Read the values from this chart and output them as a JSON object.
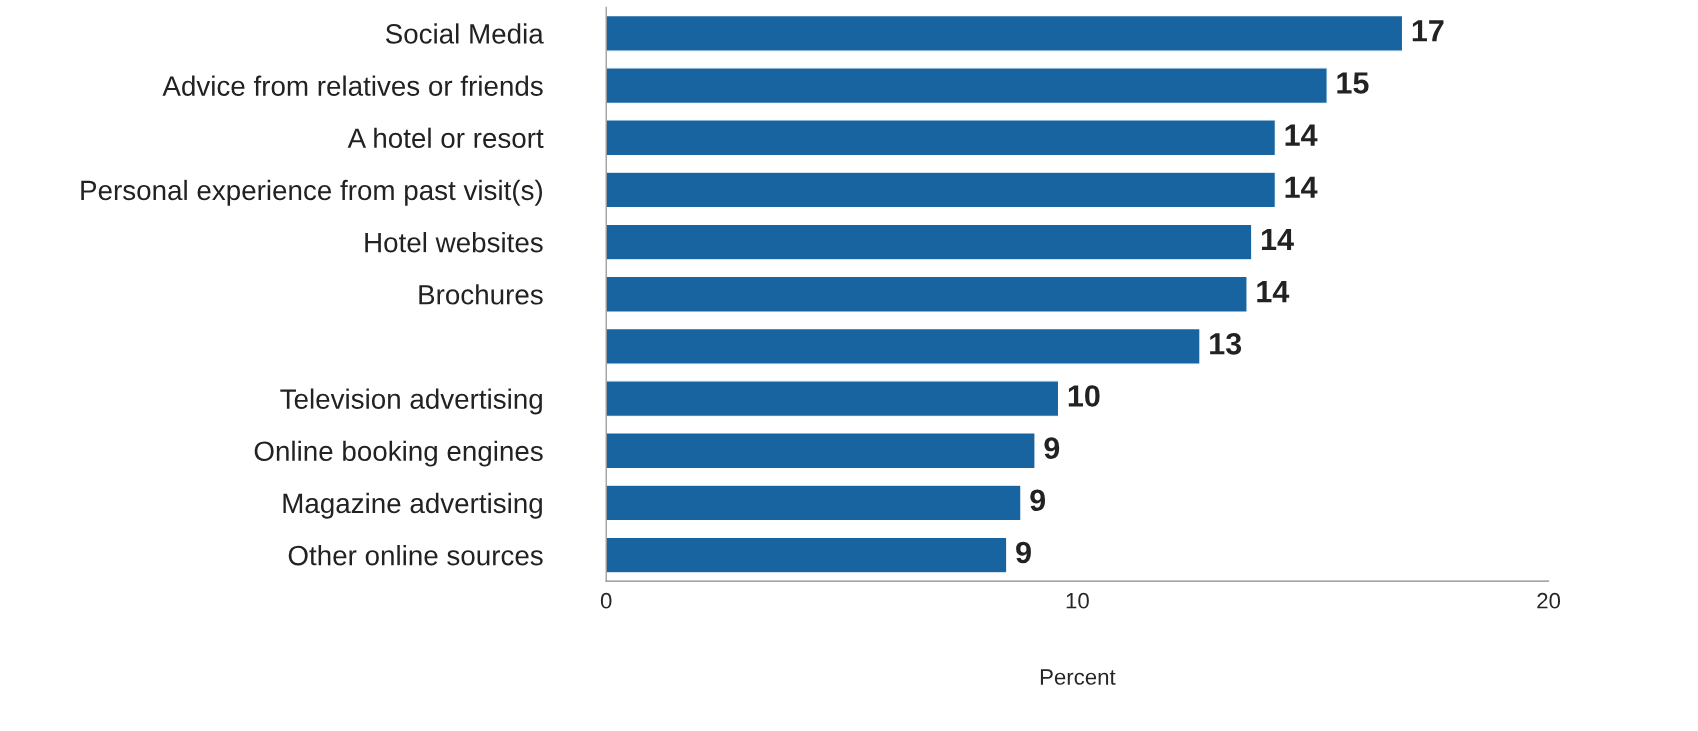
{
  "chart_data": {
    "type": "bar",
    "orientation": "horizontal",
    "xlabel": "Percent",
    "categories": [
      "Social Media",
      "Advice from relatives or friends",
      "A hotel or resort",
      "Personal experience from past visit(s)",
      "Hotel websites",
      "Brochures",
      null,
      "Television advertising",
      "Online booking engines",
      "Magazine advertising",
      "Other online sources"
    ],
    "values": [
      16.9,
      15.3,
      14.2,
      14.2,
      13.7,
      13.6,
      12.6,
      9.6,
      9.1,
      8.8,
      8.5
    ],
    "value_labels": [
      "17",
      "15",
      "14",
      "14",
      "14",
      "14",
      "13",
      "10",
      "9",
      "9",
      "9"
    ],
    "color": "#1764a0",
    "xlim": [
      0,
      20
    ],
    "xticks": [
      0,
      10,
      20
    ],
    "grid": false
  }
}
